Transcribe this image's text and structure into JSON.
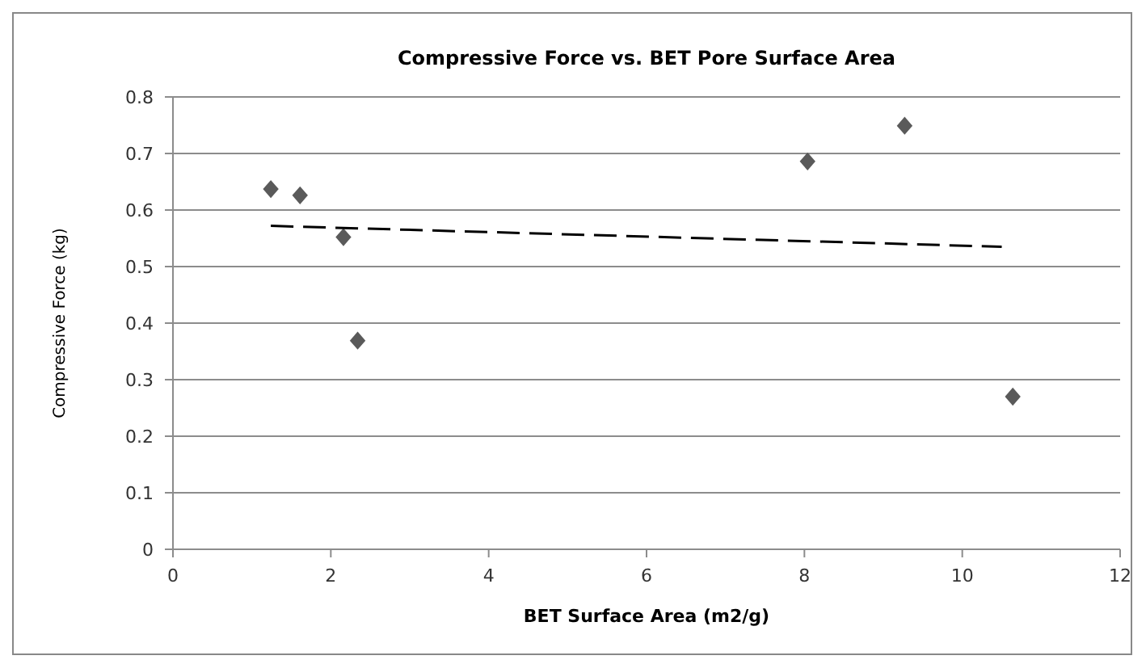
{
  "chart_data": {
    "type": "scatter",
    "title": "Compressive Force vs. BET Pore Surface Area",
    "xlabel": "BET Surface Area (m2/g)",
    "ylabel": "Compressive Force (kg)",
    "xlim": [
      0,
      12
    ],
    "xticks": [
      0,
      2,
      4,
      6,
      8,
      10,
      12
    ],
    "ylim": [
      0,
      0.8
    ],
    "yticks": [
      0,
      0.1,
      0.2,
      0.3,
      0.4,
      0.5,
      0.6,
      0.7,
      0.8
    ],
    "grid": "y",
    "marker": "diamond",
    "series": [
      {
        "color": "#5a5a5a",
        "x": [
          1.24,
          1.61,
          2.16,
          2.34,
          8.04,
          9.27,
          10.64
        ],
        "values": [
          0.637,
          0.626,
          0.552,
          0.369,
          0.686,
          0.749,
          0.27
        ]
      },
      {
        "type": "line",
        "color": "#000000",
        "line_style": "dashed",
        "marker": "none",
        "x": [
          1.24,
          10.5
        ],
        "values": [
          0.572,
          0.535
        ]
      }
    ]
  }
}
